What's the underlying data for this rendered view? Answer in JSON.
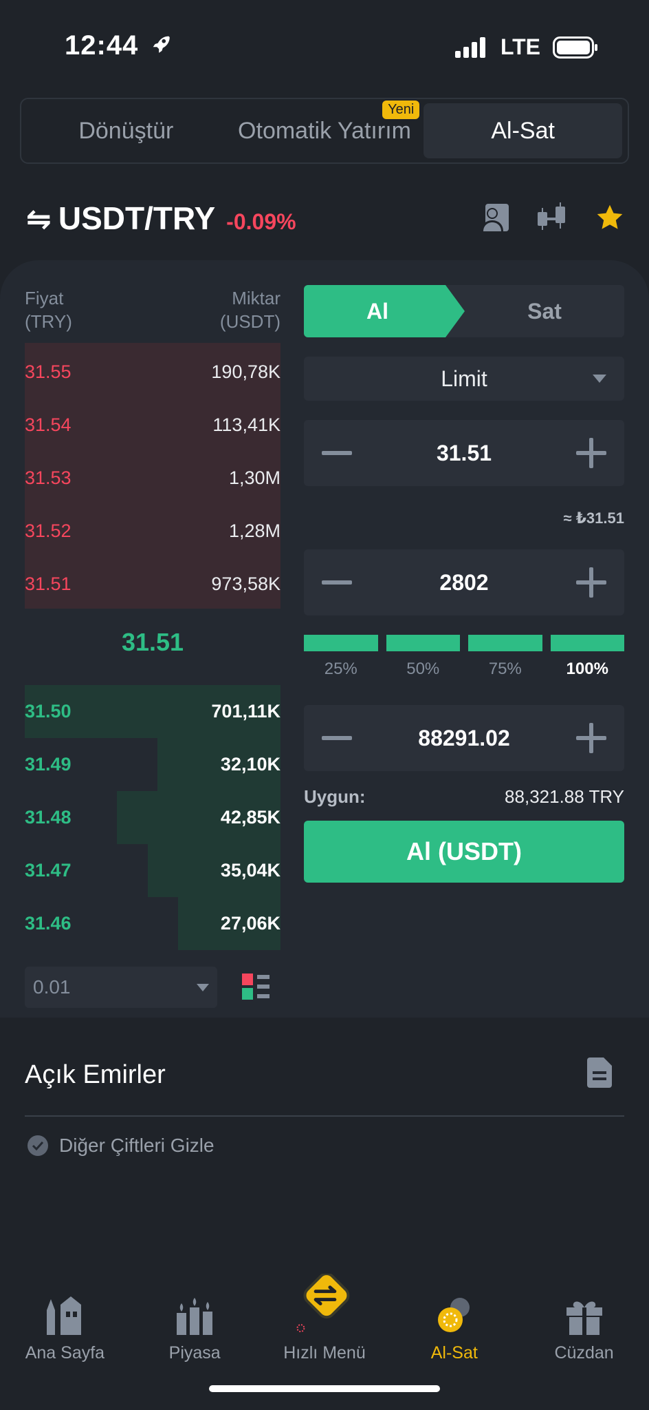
{
  "status": {
    "time": "12:44",
    "network": "LTE"
  },
  "tabs": [
    {
      "label": "Dönüştür"
    },
    {
      "label": "Otomatik Yatırım",
      "badge": "Yeni"
    },
    {
      "label": "Al-Sat"
    }
  ],
  "pair": {
    "name": "USDT/TRY",
    "change": "-0.09%"
  },
  "orderbook": {
    "price_header": "Fiyat\n(TRY)",
    "qty_header": "Miktar\n(USDT)",
    "asks": [
      {
        "price": "31.55",
        "qty": "190,78K"
      },
      {
        "price": "31.54",
        "qty": "113,41K"
      },
      {
        "price": "31.53",
        "qty": "1,30M"
      },
      {
        "price": "31.52",
        "qty": "1,28M"
      },
      {
        "price": "31.51",
        "qty": "973,58K"
      }
    ],
    "mid_price": "31.51",
    "bids": [
      {
        "price": "31.50",
        "qty": "701,11K",
        "depth": 1.0
      },
      {
        "price": "31.49",
        "qty": "32,10K",
        "depth": 0.48
      },
      {
        "price": "31.48",
        "qty": "42,85K",
        "depth": 0.64
      },
      {
        "price": "31.47",
        "qty": "35,04K",
        "depth": 0.52
      },
      {
        "price": "31.46",
        "qty": "27,06K",
        "depth": 0.4
      }
    ],
    "tick_size": "0.01"
  },
  "trade": {
    "buy_label": "Al",
    "sell_label": "Sat",
    "order_type": "Limit",
    "price": "31.51",
    "approx": "≈ ₺31.51",
    "amount": "2802",
    "percents": [
      "25%",
      "50%",
      "75%",
      "100%"
    ],
    "total": "88291.02",
    "available_label": "Uygun:",
    "available_value": "88,321.88 TRY",
    "submit_label": "Al (USDT)"
  },
  "open_orders": {
    "title": "Açık Emirler",
    "hide_label": "Diğer Çiftleri Gizle"
  },
  "nav": [
    {
      "label": "Ana Sayfa"
    },
    {
      "label": "Piyasa"
    },
    {
      "label": "Hızlı Menü"
    },
    {
      "label": "Al-Sat"
    },
    {
      "label": "Cüzdan"
    }
  ],
  "colors": {
    "green": "#2ebd85",
    "red": "#f6465d",
    "gold": "#f0b90b",
    "bg": "#1f2329"
  }
}
